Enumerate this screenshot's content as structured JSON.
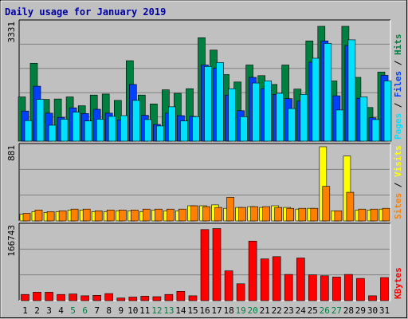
{
  "colors": {
    "background": "#c0c0c0",
    "plot_background": "#c0c0c0",
    "title": "#0000a0",
    "hits": "#008040",
    "files": "#0040ff",
    "pages": "#00e0ff",
    "visits": "#ffff00",
    "sites": "#ff8000",
    "kbytes": "#ff0000",
    "weekend_day": "#008040",
    "weekday": "#000000",
    "separator": "#000000"
  },
  "chart_data": {
    "type": "bar",
    "title": "Daily usage for January 2019",
    "categories": [
      "1",
      "2",
      "3",
      "4",
      "5",
      "6",
      "7",
      "8",
      "9",
      "10",
      "11",
      "12",
      "13",
      "14",
      "15",
      "16",
      "17",
      "18",
      "19",
      "20",
      "21",
      "22",
      "23",
      "24",
      "25",
      "26",
      "27",
      "28",
      "29",
      "30",
      "31"
    ],
    "weekend_days": [
      "5",
      "6",
      "12",
      "13",
      "19",
      "20",
      "26",
      "27"
    ],
    "panels": [
      {
        "id": "hits_files_pages",
        "max_label": "3331",
        "ylim": [
          0,
          3331
        ],
        "legend": [
          {
            "text": "Pages",
            "color_key": "pages"
          },
          {
            "text": "/",
            "color_key": "separator"
          },
          {
            "text": "Files",
            "color_key": "files"
          },
          {
            "text": "/",
            "color_key": "separator"
          },
          {
            "text": "Hits",
            "color_key": "hits"
          }
        ],
        "series": [
          {
            "name": "Hits",
            "color_key": "hits",
            "values": [
              1250,
              2200,
              1180,
              1190,
              1250,
              1000,
              1300,
              1330,
              1150,
              2270,
              1300,
              1050,
              1450,
              1350,
              1480,
              2920,
              2570,
              1880,
              1670,
              2150,
              1850,
              1600,
              2150,
              1470,
              2830,
              3240,
              1700,
              3240,
              1800,
              950,
              1950
            ]
          },
          {
            "name": "Files",
            "color_key": "files",
            "values": [
              850,
              1550,
              790,
              670,
              940,
              780,
              900,
              790,
              600,
              1600,
              730,
              470,
              790,
              720,
              700,
              2150,
              2060,
              1300,
              860,
              1800,
              1480,
              1320,
              1200,
              1130,
              2230,
              2830,
              1280,
              2700,
              1210,
              660,
              1860
            ]
          },
          {
            "name": "Pages",
            "color_key": "pages",
            "values": [
              580,
              1180,
              450,
              620,
              820,
              570,
              620,
              700,
              720,
              1150,
              610,
              430,
              970,
              570,
              690,
              2110,
              2220,
              1480,
              690,
              1640,
              1700,
              1350,
              920,
              1320,
              2340,
              2760,
              880,
              2860,
              1250,
              610,
              1700
            ]
          }
        ]
      },
      {
        "id": "visits_sites",
        "max_label": "881",
        "ylim": [
          0,
          881
        ],
        "legend": [
          {
            "text": "Sites",
            "color_key": "sites"
          },
          {
            "text": "/",
            "color_key": "separator"
          },
          {
            "text": "Visits",
            "color_key": "visits"
          }
        ],
        "series": [
          {
            "name": "Visits",
            "color_key": "visits",
            "values": [
              80,
              110,
              100,
              110,
              130,
              130,
              110,
              110,
              120,
              120,
              110,
              130,
              120,
              120,
              180,
              180,
              190,
              150,
              160,
              170,
              160,
              180,
              160,
              140,
              150,
              881,
              120,
              770,
              130,
              130,
              140
            ]
          },
          {
            "name": "Sites",
            "color_key": "sites",
            "values": [
              90,
              130,
              110,
              120,
              140,
              140,
              120,
              130,
              130,
              130,
              140,
              140,
              140,
              140,
              180,
              170,
              160,
              280,
              160,
              170,
              170,
              160,
              150,
              150,
              150,
              410,
              120,
              340,
              140,
              140,
              150
            ]
          }
        ]
      },
      {
        "id": "kbytes",
        "max_label": "166743",
        "ylim": [
          0,
          166743
        ],
        "legend": [
          {
            "text": "KBytes",
            "color_key": "kbytes"
          }
        ],
        "series": [
          {
            "name": "KBytes",
            "color_key": "kbytes",
            "values": [
              14000,
              19000,
              19000,
              14000,
              15000,
              11000,
              12000,
              16000,
              6000,
              8000,
              10000,
              9000,
              14000,
              21000,
              11000,
              160000,
              162000,
              67000,
              38000,
              134000,
              94000,
              99000,
              59000,
              96000,
              58000,
              56000,
              53000,
              59000,
              50000,
              11000,
              52000
            ]
          }
        ]
      }
    ]
  }
}
